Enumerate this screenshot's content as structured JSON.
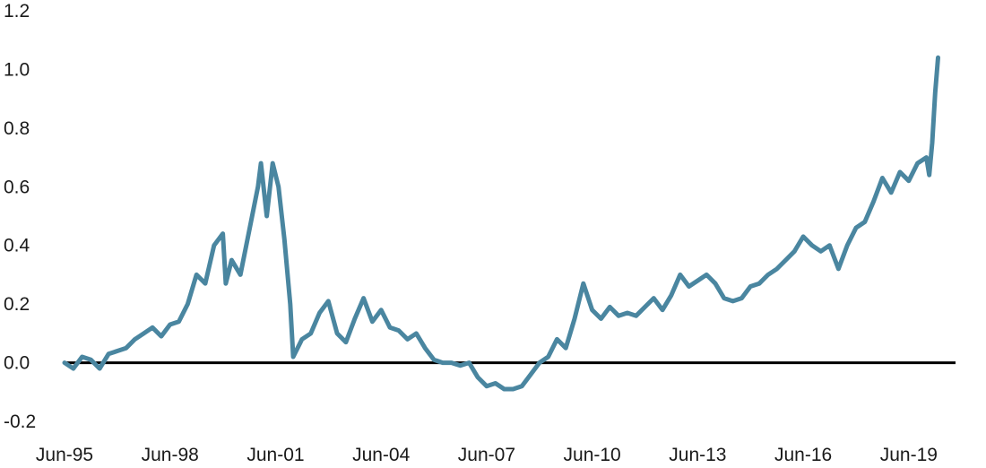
{
  "chart_data": {
    "type": "line",
    "title": "",
    "xlabel": "",
    "ylabel": "",
    "x_range": [
      "1995-06",
      "2020-02"
    ],
    "ylim": [
      -0.2,
      1.2
    ],
    "y_ticks": [
      {
        "value": 1.2,
        "label": "1.2"
      },
      {
        "value": 1.0,
        "label": "1.0"
      },
      {
        "value": 0.8,
        "label": "0.8"
      },
      {
        "value": 0.6,
        "label": "0.6"
      },
      {
        "value": 0.4,
        "label": "0.4"
      },
      {
        "value": 0.2,
        "label": "0.2"
      },
      {
        "value": 0.0,
        "label": "0.0"
      },
      {
        "value": -0.2,
        "label": "-0.2"
      }
    ],
    "x_ticks": [
      {
        "date": "1995-06",
        "label": "Jun-95"
      },
      {
        "date": "1998-06",
        "label": "Jun-98"
      },
      {
        "date": "2001-06",
        "label": "Jun-01"
      },
      {
        "date": "2004-06",
        "label": "Jun-04"
      },
      {
        "date": "2007-06",
        "label": "Jun-07"
      },
      {
        "date": "2010-06",
        "label": "Jun-10"
      },
      {
        "date": "2013-06",
        "label": "Jun-13"
      },
      {
        "date": "2016-06",
        "label": "Jun-16"
      },
      {
        "date": "2019-06",
        "label": "Jun-19"
      }
    ],
    "zero_line": 0.0,
    "grid": false,
    "legend": "none",
    "series": [
      {
        "color": "#4a86a0",
        "points": [
          [
            "1995-06",
            0.0
          ],
          [
            "1995-09",
            -0.02
          ],
          [
            "1995-12",
            0.02
          ],
          [
            "1996-03",
            0.01
          ],
          [
            "1996-06",
            -0.02
          ],
          [
            "1996-09",
            0.03
          ],
          [
            "1996-12",
            0.04
          ],
          [
            "1997-03",
            0.05
          ],
          [
            "1997-06",
            0.08
          ],
          [
            "1997-09",
            0.1
          ],
          [
            "1997-12",
            0.12
          ],
          [
            "1998-03",
            0.09
          ],
          [
            "1998-06",
            0.13
          ],
          [
            "1998-09",
            0.14
          ],
          [
            "1998-12",
            0.2
          ],
          [
            "1999-03",
            0.3
          ],
          [
            "1999-06",
            0.27
          ],
          [
            "1999-09",
            0.4
          ],
          [
            "1999-12",
            0.44
          ],
          [
            "2000-01",
            0.27
          ],
          [
            "2000-03",
            0.35
          ],
          [
            "2000-06",
            0.3
          ],
          [
            "2000-09",
            0.45
          ],
          [
            "2000-12",
            0.6
          ],
          [
            "2001-01",
            0.68
          ],
          [
            "2001-03",
            0.5
          ],
          [
            "2001-05",
            0.68
          ],
          [
            "2001-07",
            0.6
          ],
          [
            "2001-09",
            0.42
          ],
          [
            "2001-11",
            0.2
          ],
          [
            "2001-12",
            0.02
          ],
          [
            "2002-03",
            0.08
          ],
          [
            "2002-06",
            0.1
          ],
          [
            "2002-09",
            0.17
          ],
          [
            "2002-12",
            0.21
          ],
          [
            "2003-03",
            0.1
          ],
          [
            "2003-06",
            0.07
          ],
          [
            "2003-09",
            0.15
          ],
          [
            "2003-12",
            0.22
          ],
          [
            "2004-03",
            0.14
          ],
          [
            "2004-06",
            0.18
          ],
          [
            "2004-09",
            0.12
          ],
          [
            "2004-12",
            0.11
          ],
          [
            "2005-03",
            0.08
          ],
          [
            "2005-06",
            0.1
          ],
          [
            "2005-09",
            0.05
          ],
          [
            "2005-12",
            0.01
          ],
          [
            "2006-03",
            0.0
          ],
          [
            "2006-06",
            0.0
          ],
          [
            "2006-09",
            -0.01
          ],
          [
            "2006-12",
            0.0
          ],
          [
            "2007-03",
            -0.05
          ],
          [
            "2007-06",
            -0.08
          ],
          [
            "2007-09",
            -0.07
          ],
          [
            "2007-12",
            -0.09
          ],
          [
            "2008-03",
            -0.09
          ],
          [
            "2008-06",
            -0.08
          ],
          [
            "2008-09",
            -0.04
          ],
          [
            "2008-12",
            0.0
          ],
          [
            "2009-03",
            0.02
          ],
          [
            "2009-06",
            0.08
          ],
          [
            "2009-09",
            0.05
          ],
          [
            "2009-12",
            0.15
          ],
          [
            "2010-03",
            0.27
          ],
          [
            "2010-06",
            0.18
          ],
          [
            "2010-09",
            0.15
          ],
          [
            "2010-12",
            0.19
          ],
          [
            "2011-03",
            0.16
          ],
          [
            "2011-06",
            0.17
          ],
          [
            "2011-09",
            0.16
          ],
          [
            "2011-12",
            0.19
          ],
          [
            "2012-03",
            0.22
          ],
          [
            "2012-06",
            0.18
          ],
          [
            "2012-09",
            0.23
          ],
          [
            "2012-12",
            0.3
          ],
          [
            "2013-03",
            0.26
          ],
          [
            "2013-06",
            0.28
          ],
          [
            "2013-09",
            0.3
          ],
          [
            "2013-12",
            0.27
          ],
          [
            "2014-03",
            0.22
          ],
          [
            "2014-06",
            0.21
          ],
          [
            "2014-09",
            0.22
          ],
          [
            "2014-12",
            0.26
          ],
          [
            "2015-03",
            0.27
          ],
          [
            "2015-06",
            0.3
          ],
          [
            "2015-09",
            0.32
          ],
          [
            "2015-12",
            0.35
          ],
          [
            "2016-03",
            0.38
          ],
          [
            "2016-06",
            0.43
          ],
          [
            "2016-09",
            0.4
          ],
          [
            "2016-12",
            0.38
          ],
          [
            "2017-03",
            0.4
          ],
          [
            "2017-06",
            0.32
          ],
          [
            "2017-09",
            0.4
          ],
          [
            "2017-12",
            0.46
          ],
          [
            "2018-03",
            0.48
          ],
          [
            "2018-06",
            0.55
          ],
          [
            "2018-09",
            0.63
          ],
          [
            "2018-12",
            0.58
          ],
          [
            "2019-03",
            0.65
          ],
          [
            "2019-06",
            0.62
          ],
          [
            "2019-09",
            0.68
          ],
          [
            "2019-12",
            0.7
          ],
          [
            "2020-01",
            0.64
          ],
          [
            "2020-02",
            0.75
          ],
          [
            "2020-03",
            0.92
          ],
          [
            "2020-04",
            1.04
          ]
        ]
      }
    ]
  }
}
